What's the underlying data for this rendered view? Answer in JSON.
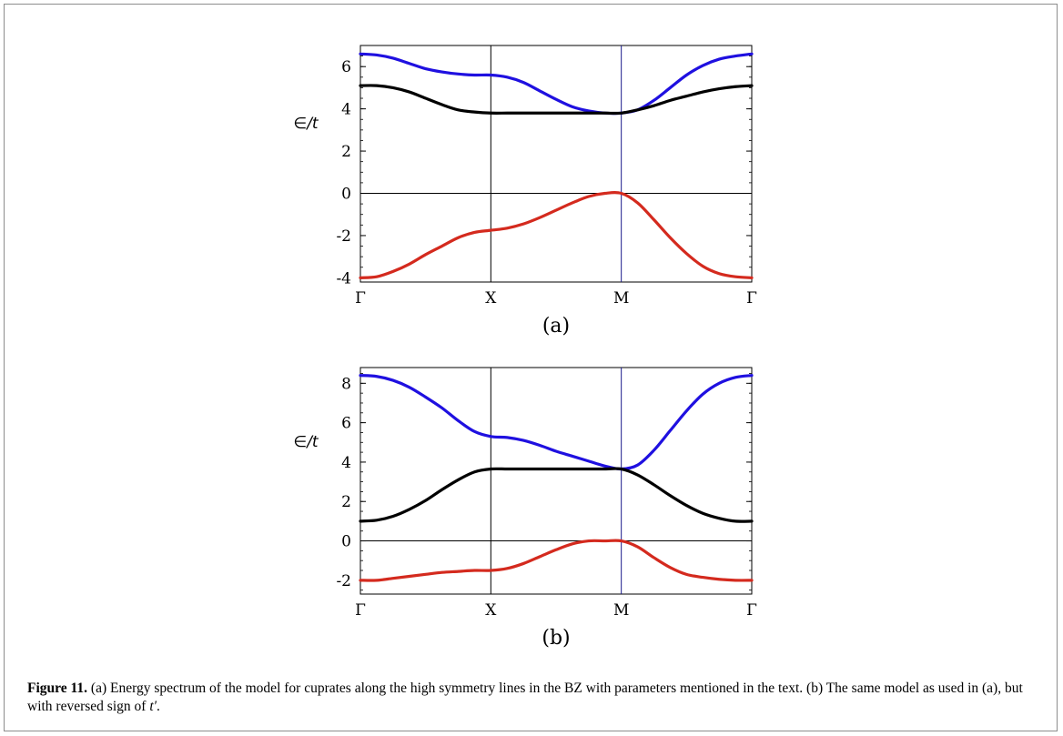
{
  "caption": {
    "label": "Figure 11.",
    "text": " (a) Energy spectrum of the model for cuprates along the high symmetry lines in the BZ with parameters mentioned in the text. (b) The same model as used in (a), but with reversed sign of ",
    "symbol": "t′",
    "end": "."
  },
  "chart_data": [
    {
      "type": "line",
      "panel_label": "(a)",
      "ylabel": "∈/t",
      "x_ticks": [
        "Γ",
        "X",
        "M",
        "Γ"
      ],
      "x": [
        0,
        0.125,
        0.25,
        0.375,
        0.5,
        0.625,
        0.75,
        0.875,
        1,
        1.125,
        1.25,
        1.375,
        1.5,
        1.625,
        1.75,
        1.875,
        2,
        2.125,
        2.25,
        2.375,
        2.5,
        2.625,
        2.75,
        2.875,
        3
      ],
      "ylim": [
        -4.2,
        7.0
      ],
      "yticks": [
        -4,
        -2,
        0,
        2,
        4,
        6
      ],
      "series": [
        {
          "color": "#1f10e0",
          "values": [
            6.6,
            6.55,
            6.4,
            6.15,
            5.9,
            5.75,
            5.65,
            5.6,
            5.6,
            5.5,
            5.25,
            4.85,
            4.45,
            4.1,
            3.9,
            3.8,
            3.8,
            3.95,
            4.4,
            5.0,
            5.6,
            6.05,
            6.35,
            6.5,
            6.6
          ]
        },
        {
          "color": "#000000",
          "values": [
            5.1,
            5.1,
            5.0,
            4.8,
            4.5,
            4.2,
            3.95,
            3.85,
            3.8,
            3.8,
            3.8,
            3.8,
            3.8,
            3.8,
            3.8,
            3.8,
            3.8,
            3.95,
            4.15,
            4.4,
            4.6,
            4.8,
            4.95,
            5.05,
            5.1
          ]
        },
        {
          "color": "#d42a1e",
          "values": [
            -4.0,
            -3.95,
            -3.7,
            -3.35,
            -2.9,
            -2.5,
            -2.1,
            -1.85,
            -1.75,
            -1.65,
            -1.45,
            -1.15,
            -0.8,
            -0.45,
            -0.15,
            0.0,
            0.0,
            -0.45,
            -1.25,
            -2.1,
            -2.85,
            -3.45,
            -3.8,
            -3.95,
            -4.0
          ]
        }
      ]
    },
    {
      "type": "line",
      "panel_label": "(b)",
      "ylabel": "∈/t",
      "x_ticks": [
        "Γ",
        "X",
        "M",
        "Γ"
      ],
      "x": [
        0,
        0.125,
        0.25,
        0.375,
        0.5,
        0.625,
        0.75,
        0.875,
        1,
        1.125,
        1.25,
        1.375,
        1.5,
        1.625,
        1.75,
        1.875,
        2,
        2.125,
        2.25,
        2.375,
        2.5,
        2.625,
        2.75,
        2.875,
        3
      ],
      "ylim": [
        -2.7,
        8.8
      ],
      "yticks": [
        -2,
        0,
        2,
        4,
        6,
        8
      ],
      "series": [
        {
          "color": "#1f10e0",
          "values": [
            8.4,
            8.35,
            8.15,
            7.8,
            7.3,
            6.75,
            6.1,
            5.55,
            5.3,
            5.25,
            5.1,
            4.85,
            4.55,
            4.3,
            4.05,
            3.8,
            3.65,
            3.85,
            4.6,
            5.6,
            6.6,
            7.45,
            8.0,
            8.3,
            8.4
          ]
        },
        {
          "color": "#000000",
          "values": [
            1.0,
            1.05,
            1.25,
            1.6,
            2.05,
            2.6,
            3.1,
            3.5,
            3.65,
            3.65,
            3.65,
            3.65,
            3.65,
            3.65,
            3.65,
            3.65,
            3.65,
            3.35,
            2.85,
            2.3,
            1.8,
            1.4,
            1.15,
            1.0,
            1.0
          ]
        },
        {
          "color": "#d42a1e",
          "values": [
            -2.0,
            -2.0,
            -1.9,
            -1.8,
            -1.7,
            -1.6,
            -1.55,
            -1.5,
            -1.5,
            -1.4,
            -1.15,
            -0.8,
            -0.45,
            -0.15,
            0.0,
            0.0,
            0.0,
            -0.3,
            -0.85,
            -1.35,
            -1.7,
            -1.85,
            -1.95,
            -2.0,
            -2.0
          ]
        }
      ]
    }
  ]
}
